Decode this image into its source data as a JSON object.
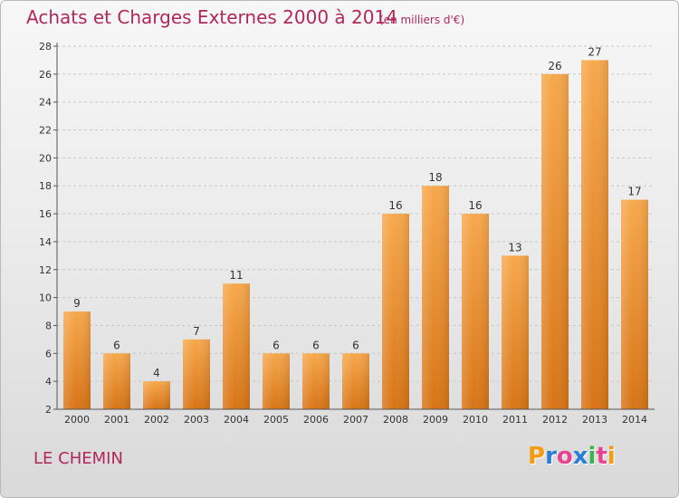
{
  "header": {
    "title": "Achats et Charges Externes 2000 à 2014",
    "unit_note": "(en milliers d'€)"
  },
  "footer": {
    "commune": "LE CHEMIN",
    "logo_letters": [
      "P",
      "r",
      "o",
      "x",
      "i",
      "t",
      "i"
    ],
    "logo_colors": [
      "#f39c12",
      "#2a7fd4",
      "#e84393",
      "#2a7fd4",
      "#3cb44b",
      "#e84393",
      "#f39c12"
    ]
  },
  "colors": {
    "accent": "#b0285a",
    "bar_light": "#f7a84c",
    "bar_dark": "#d77416",
    "gridline": "#c8c8c8"
  },
  "chart_data": {
    "type": "bar",
    "categories": [
      "2000",
      "2001",
      "2002",
      "2003",
      "2004",
      "2005",
      "2006",
      "2007",
      "2008",
      "2009",
      "2010",
      "2011",
      "2012",
      "2013",
      "2014"
    ],
    "values": [
      9,
      6,
      4,
      7,
      11,
      6,
      6,
      6,
      16,
      18,
      16,
      13,
      26,
      27,
      17
    ],
    "data_labels": [
      "9",
      "6",
      "4",
      "7",
      "11",
      "6",
      "6",
      "6",
      "16",
      "18",
      "16",
      "13",
      "26",
      "27",
      "17"
    ],
    "yticks": [
      "2",
      "4",
      "6",
      "8",
      "10",
      "12",
      "14",
      "16",
      "18",
      "20",
      "22",
      "24",
      "26",
      "28"
    ],
    "ylim": [
      2,
      28
    ],
    "grid": "horizontal",
    "legend": "none"
  }
}
